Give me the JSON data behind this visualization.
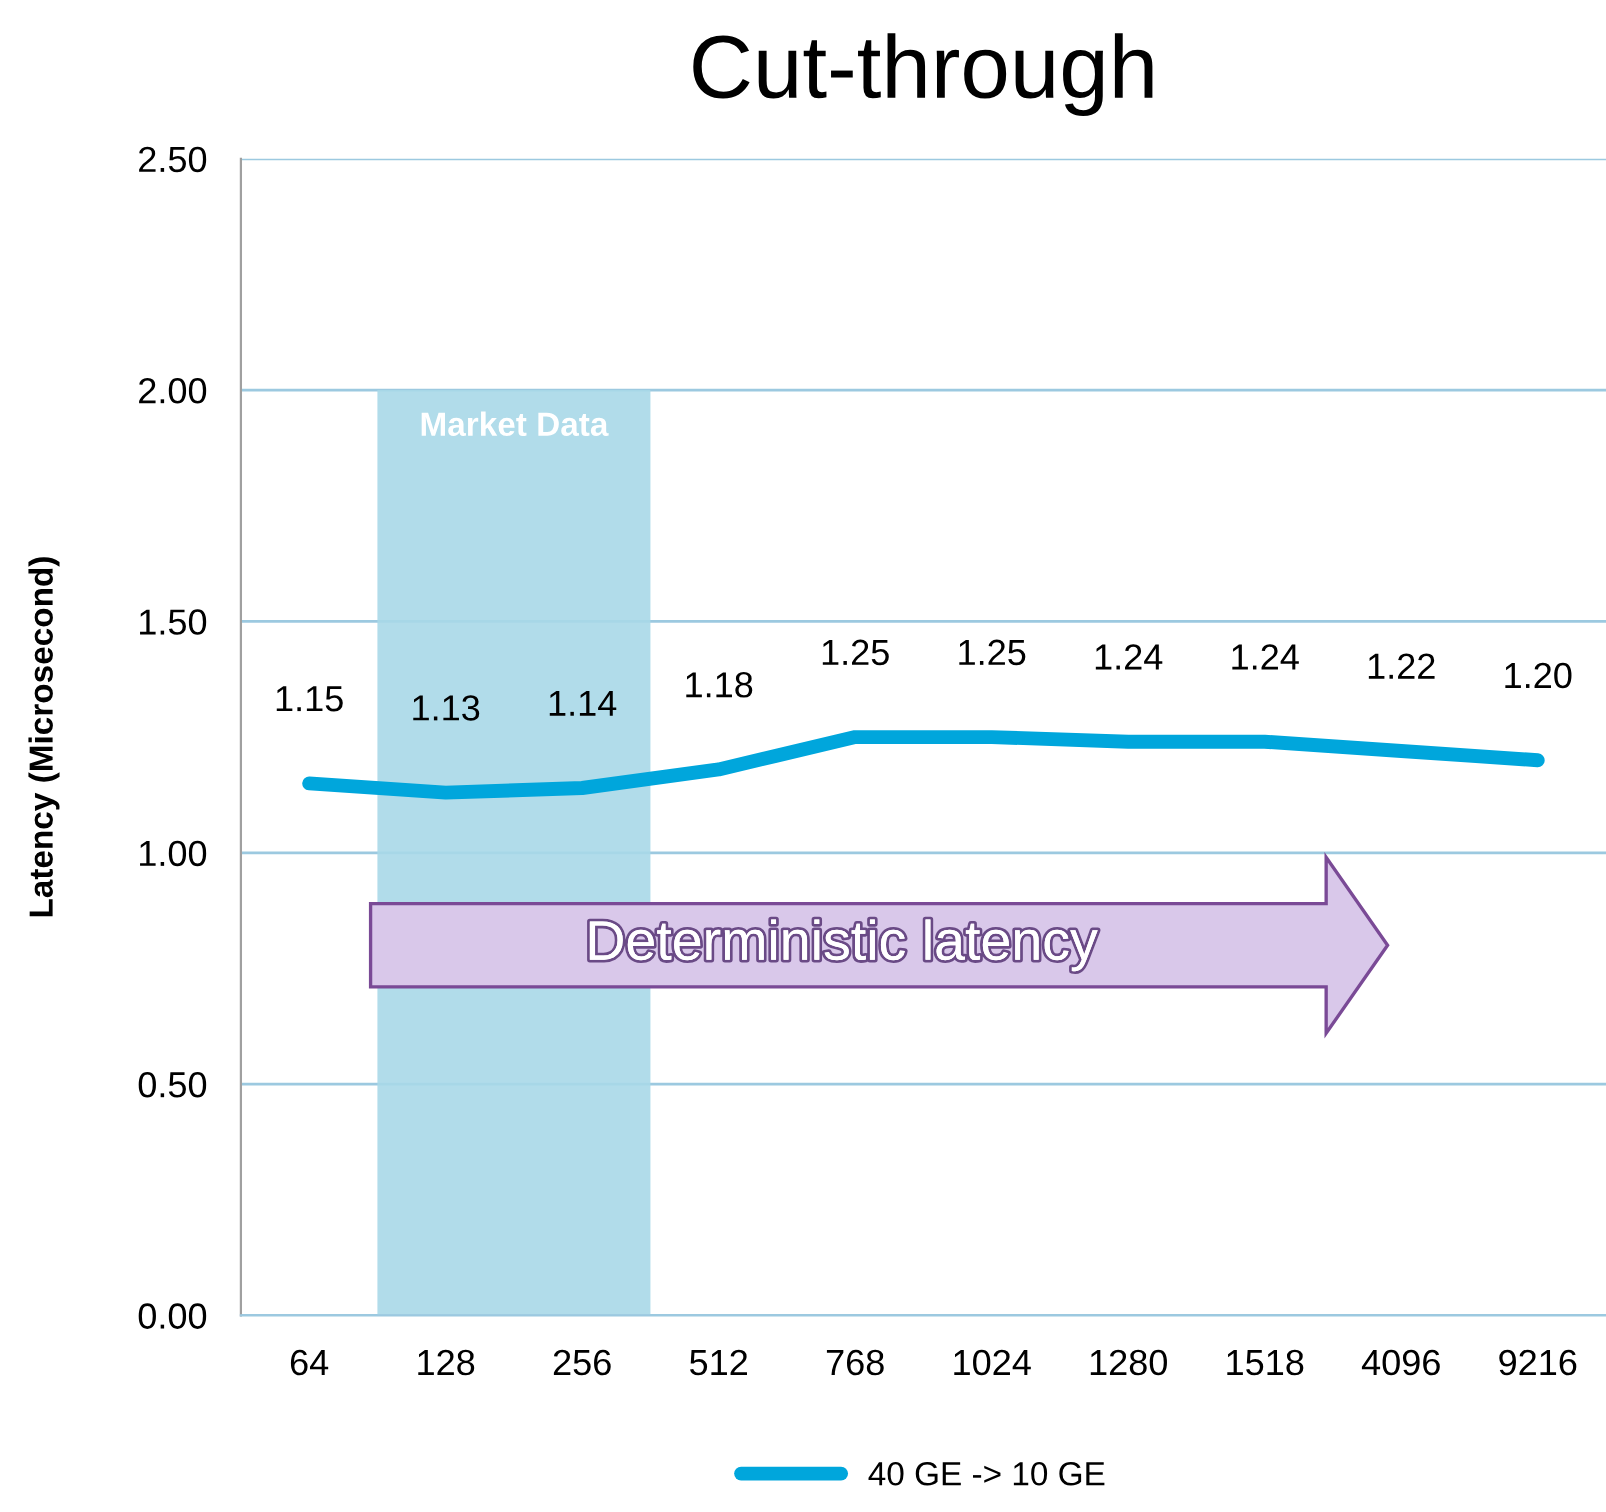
{
  "chart_data": {
    "type": "line",
    "title": "Cut-through",
    "ylabel": "Latency (Microsecond)",
    "categories": [
      "64",
      "128",
      "256",
      "512",
      "768",
      "1024",
      "1280",
      "1518",
      "4096",
      "9216"
    ],
    "series": [
      {
        "name": "40 GE -> 10 GE",
        "color": "#00a6dc",
        "values": [
          1.15,
          1.13,
          1.14,
          1.18,
          1.25,
          1.25,
          1.24,
          1.24,
          1.22,
          1.2
        ],
        "value_labels": [
          "1.15",
          "1.13",
          "1.14",
          "1.18",
          "1.25",
          "1.25",
          "1.24",
          "1.24",
          "1.22",
          "1.20"
        ]
      }
    ],
    "ylim": [
      0,
      2.5
    ],
    "yticks": [
      {
        "value": 0,
        "label": "0.00"
      },
      {
        "value": 0.5,
        "label": "0.50"
      },
      {
        "value": 1,
        "label": "1.00"
      },
      {
        "value": 1.5,
        "label": "1.50"
      },
      {
        "value": 2,
        "label": "2.00"
      },
      {
        "value": 2.5,
        "label": "2.50"
      }
    ],
    "bands": [
      {
        "axis": "x",
        "from": "128",
        "to": "256",
        "label": "Market Data",
        "color": "#a8d8e8"
      }
    ],
    "annotations": [
      "Deterministic latency"
    ],
    "grid": "y",
    "legend": "bottom",
    "marker": "none",
    "line_style": "solid"
  }
}
